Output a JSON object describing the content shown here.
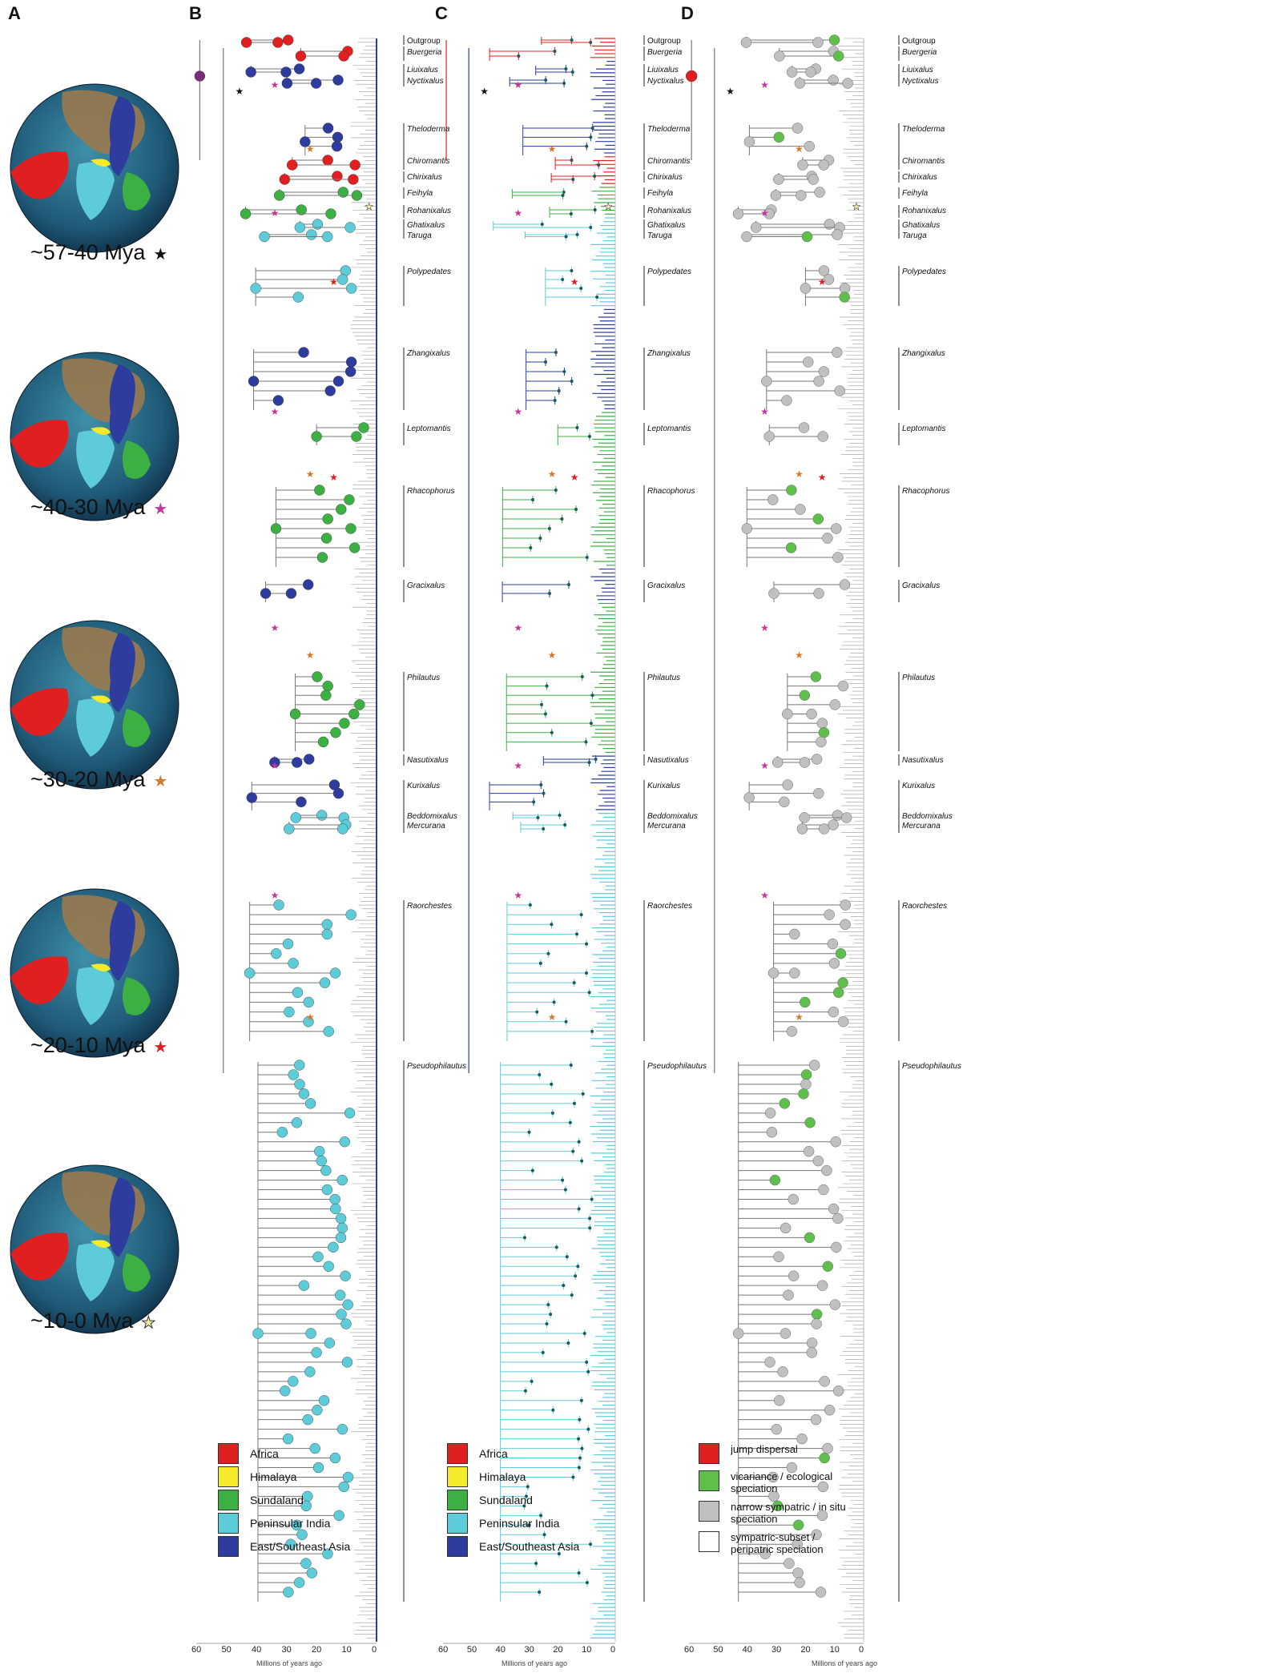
{
  "panels": {
    "a": "A",
    "b": "B",
    "c": "C",
    "d": "D"
  },
  "globes": [
    {
      "label": "~57-40 Mya",
      "star_color": "#111111"
    },
    {
      "label": "~40-30 Mya",
      "star_color": "#c0399a"
    },
    {
      "label": "~30-20 Mya",
      "star_color": "#d27a2e"
    },
    {
      "label": "~20-10 Mya",
      "star_color": "#e02020"
    },
    {
      "label": "~10-0 Mya",
      "star_color": "#f2f0a0"
    }
  ],
  "clades": [
    "Outgroup",
    "Buergeria",
    "Liuixalus",
    "Nyctixalus",
    "Theloderma",
    "Chiromantis",
    "Chirixalus",
    "Feihyla",
    "Rohanixalus",
    "Ghatixalus",
    "Taruga",
    "Polypedates",
    "Zhangixalus",
    "Leptomantis",
    "Rhacophorus",
    "Gracixalus",
    "Philautus",
    "Nasutixalus",
    "Kurixalus",
    "Beddomixalus",
    "Mercurana",
    "Raorchestes",
    "Pseudophilautus"
  ],
  "area_legend": [
    {
      "label": "Africa",
      "color": "#e02020"
    },
    {
      "label": "Himalaya",
      "color": "#f5ea2a"
    },
    {
      "label": "Sundaland",
      "color": "#3cb043"
    },
    {
      "label": "Peninsular India",
      "color": "#5ecbd8"
    },
    {
      "label": "East/Southeast Asia",
      "color": "#2e3c9e"
    }
  ],
  "mode_legend": [
    {
      "label": "jump dispersal",
      "color": "#e02020"
    },
    {
      "label": "vicariance / ecological speciation",
      "color": "#5ec04a"
    },
    {
      "label": "narrow sympatric / in situ speciation",
      "color": "#c0c0c0"
    },
    {
      "label": "sympatric-subset / peripatric speciation",
      "color": "#ffffff"
    }
  ],
  "axis": {
    "ticks": [
      "60",
      "50",
      "40",
      "30",
      "20",
      "10",
      "0"
    ],
    "title": "Millions of years ago"
  }
}
